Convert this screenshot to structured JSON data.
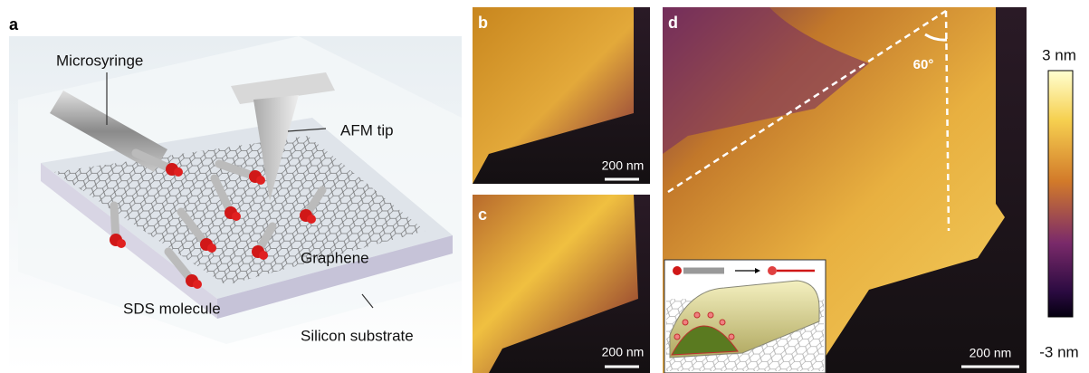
{
  "panels": {
    "a": {
      "label": "a",
      "texts": [
        "Microsyringe",
        "AFM tip",
        "Graphene",
        "SDS molecule",
        "Silicon substrate"
      ]
    },
    "b": {
      "label": "b",
      "scale_bar": "200 nm"
    },
    "c": {
      "label": "c",
      "scale_bar": "200 nm"
    },
    "d": {
      "label": "d",
      "angle": "60°",
      "scale_bar": "200 nm"
    }
  },
  "colorbar": {
    "max": "3 nm",
    "min": "-3 nm"
  }
}
